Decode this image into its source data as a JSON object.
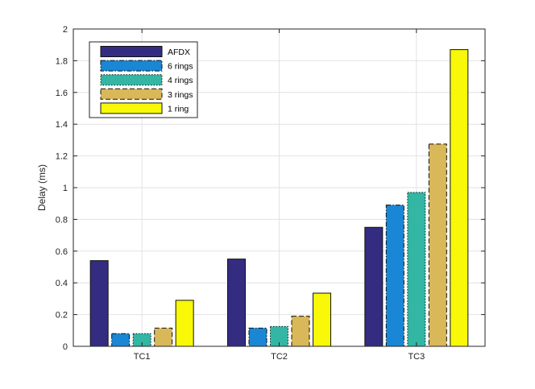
{
  "chart_data": {
    "type": "bar",
    "title": "",
    "xlabel": "",
    "ylabel": "Delay (ms)",
    "ylim": [
      0,
      2
    ],
    "yticks": [
      0,
      0.2,
      0.4,
      0.6,
      0.8,
      1,
      1.2,
      1.4,
      1.6,
      1.8,
      2
    ],
    "ytick_labels": [
      "0",
      "0.2",
      "0.4",
      "0.6",
      "0.8",
      "1",
      "1.2",
      "1.4",
      "1.6",
      "1.8",
      "2"
    ],
    "grid": true,
    "legend_position": "top-left",
    "categories": [
      "TC1",
      "TC2",
      "TC3"
    ],
    "series": [
      {
        "name": "AFDX",
        "values": [
          0.54,
          0.55,
          0.75
        ],
        "color": "#332c81",
        "dash": "solid"
      },
      {
        "name": "6 rings",
        "values": [
          0.08,
          0.115,
          0.89
        ],
        "color": "#1a86d6",
        "dash": "dashdot"
      },
      {
        "name": "4 rings",
        "values": [
          0.08,
          0.125,
          0.97
        ],
        "color": "#33b6a3",
        "dash": "dotted"
      },
      {
        "name": "3 rings",
        "values": [
          0.115,
          0.19,
          1.275
        ],
        "color": "#d8b858",
        "dash": "dashed"
      },
      {
        "name": "1 ring",
        "values": [
          0.29,
          0.335,
          1.87
        ],
        "color": "#f8f808",
        "dash": "solid"
      }
    ]
  }
}
